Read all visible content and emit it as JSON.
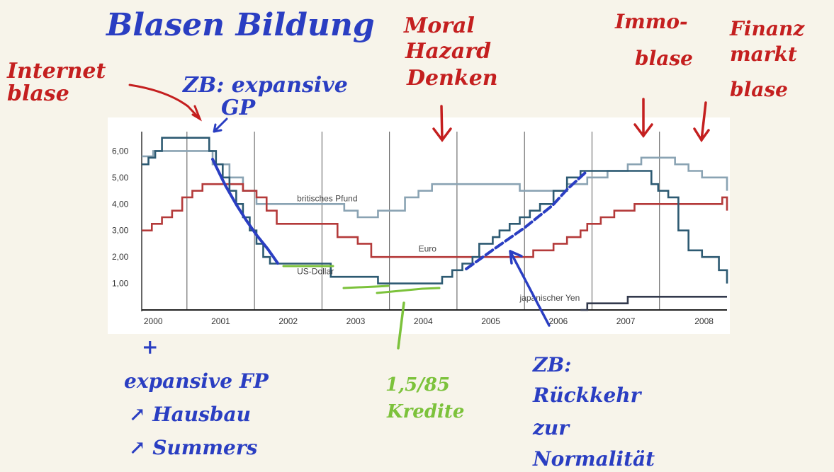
{
  "chart_data": {
    "type": "line",
    "x_ticks": [
      "2000",
      "2001",
      "2002",
      "2003",
      "2004",
      "2005",
      "2006",
      "2007",
      "2008"
    ],
    "y_ticks": [
      "1,00",
      "2,00",
      "3,00",
      "4,00",
      "5,00",
      "6,00"
    ],
    "ylim": [
      0,
      7
    ],
    "xlim": [
      2000,
      2008.67
    ],
    "series": [
      {
        "name": "britisches Pfund",
        "color": "#8aa3b3",
        "points": [
          [
            2000,
            5.8
          ],
          [
            2000.17,
            6.0
          ],
          [
            2000.9,
            6.0
          ],
          [
            2001.05,
            5.5
          ],
          [
            2001.3,
            5.0
          ],
          [
            2001.5,
            4.5
          ],
          [
            2001.7,
            4.0
          ],
          [
            2002.0,
            4.0
          ],
          [
            2002.5,
            4.0
          ],
          [
            2003.0,
            3.75
          ],
          [
            2003.2,
            3.5
          ],
          [
            2003.5,
            3.75
          ],
          [
            2003.9,
            4.25
          ],
          [
            2004.1,
            4.5
          ],
          [
            2004.3,
            4.75
          ],
          [
            2005.0,
            4.75
          ],
          [
            2005.6,
            4.5
          ],
          [
            2006.1,
            4.5
          ],
          [
            2006.3,
            4.75
          ],
          [
            2006.6,
            5.0
          ],
          [
            2006.9,
            5.25
          ],
          [
            2007.2,
            5.5
          ],
          [
            2007.4,
            5.75
          ],
          [
            2007.7,
            5.75
          ],
          [
            2007.9,
            5.5
          ],
          [
            2008.1,
            5.25
          ],
          [
            2008.3,
            5.0
          ],
          [
            2008.6,
            5.0
          ],
          [
            2008.67,
            4.5
          ]
        ]
      },
      {
        "name": "Euro",
        "color": "#b43a3a",
        "points": [
          [
            2000,
            3.0
          ],
          [
            2000.15,
            3.25
          ],
          [
            2000.3,
            3.5
          ],
          [
            2000.45,
            3.75
          ],
          [
            2000.6,
            4.25
          ],
          [
            2000.75,
            4.5
          ],
          [
            2000.9,
            4.75
          ],
          [
            2001.3,
            4.75
          ],
          [
            2001.5,
            4.5
          ],
          [
            2001.7,
            4.25
          ],
          [
            2001.85,
            3.75
          ],
          [
            2002.0,
            3.25
          ],
          [
            2002.5,
            3.25
          ],
          [
            2002.9,
            2.75
          ],
          [
            2003.2,
            2.5
          ],
          [
            2003.4,
            2.0
          ],
          [
            2005.6,
            2.0
          ],
          [
            2005.8,
            2.25
          ],
          [
            2006.1,
            2.5
          ],
          [
            2006.3,
            2.75
          ],
          [
            2006.5,
            3.0
          ],
          [
            2006.6,
            3.25
          ],
          [
            2006.8,
            3.5
          ],
          [
            2007.0,
            3.75
          ],
          [
            2007.3,
            4.0
          ],
          [
            2008.5,
            4.0
          ],
          [
            2008.6,
            4.25
          ],
          [
            2008.67,
            3.75
          ]
        ]
      },
      {
        "name": "US-Dollar",
        "color": "#2d5a72",
        "points": [
          [
            2000,
            5.5
          ],
          [
            2000.1,
            5.75
          ],
          [
            2000.2,
            6.0
          ],
          [
            2000.3,
            6.5
          ],
          [
            2000.9,
            6.5
          ],
          [
            2001.0,
            6.0
          ],
          [
            2001.1,
            5.5
          ],
          [
            2001.2,
            5.0
          ],
          [
            2001.3,
            4.5
          ],
          [
            2001.4,
            4.0
          ],
          [
            2001.5,
            3.5
          ],
          [
            2001.6,
            3.0
          ],
          [
            2001.7,
            2.5
          ],
          [
            2001.8,
            2.0
          ],
          [
            2001.9,
            1.75
          ],
          [
            2002.8,
            1.25
          ],
          [
            2003.5,
            1.0
          ],
          [
            2004.3,
            1.0
          ],
          [
            2004.45,
            1.25
          ],
          [
            2004.6,
            1.5
          ],
          [
            2004.75,
            1.75
          ],
          [
            2004.9,
            2.0
          ],
          [
            2005.0,
            2.5
          ],
          [
            2005.2,
            2.75
          ],
          [
            2005.3,
            3.0
          ],
          [
            2005.45,
            3.25
          ],
          [
            2005.6,
            3.5
          ],
          [
            2005.75,
            3.75
          ],
          [
            2005.9,
            4.0
          ],
          [
            2006.1,
            4.5
          ],
          [
            2006.3,
            5.0
          ],
          [
            2006.5,
            5.25
          ],
          [
            2007.4,
            5.25
          ],
          [
            2007.55,
            4.75
          ],
          [
            2007.65,
            4.5
          ],
          [
            2007.8,
            4.25
          ],
          [
            2007.95,
            3.0
          ],
          [
            2008.1,
            2.25
          ],
          [
            2008.3,
            2.0
          ],
          [
            2008.55,
            1.5
          ],
          [
            2008.67,
            1.0
          ]
        ]
      },
      {
        "name": "japanischer Yen",
        "color": "#333a4d",
        "points": [
          [
            2006.5,
            0.0
          ],
          [
            2006.6,
            0.25
          ],
          [
            2007.1,
            0.25
          ],
          [
            2007.2,
            0.5
          ],
          [
            2008.67,
            0.5
          ]
        ]
      }
    ],
    "series_labels": [
      "britisches Pfund",
      "Euro",
      "US-Dollar",
      "japanischer Yen"
    ]
  },
  "annotations": [
    {
      "text": "Blasen Bildung",
      "color": "#2a3ec2"
    },
    {
      "text": "Internet blase",
      "color": "#c41f1f"
    },
    {
      "text": "ZB: expansive GP",
      "color": "#2a3ec2"
    },
    {
      "text": "Moral Hazard Denken",
      "color": "#c41f1f"
    },
    {
      "text": "Immo- blase",
      "color": "#c41f1f"
    },
    {
      "text": "Finanz markt blase",
      "color": "#c41f1f"
    },
    {
      "text": "+ expansive FP",
      "color": "#2a3ec2"
    },
    {
      "text": "↗ Hausbau",
      "color": "#2a3ec2"
    },
    {
      "text": "↗ Summers",
      "color": "#2a3ec2"
    },
    {
      "text": "1,5/85 Kredite",
      "color": "#7cc23b"
    },
    {
      "text": "ZB: Rückkehr zur Normalität",
      "color": "#2a3ec2"
    }
  ]
}
